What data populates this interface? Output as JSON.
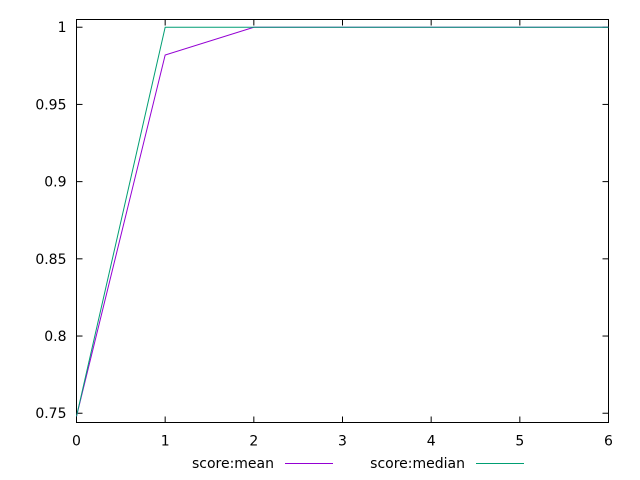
{
  "chart_data": {
    "type": "line",
    "title": "",
    "xlabel": "",
    "ylabel": "",
    "xlim": [
      0,
      6
    ],
    "ylim": [
      0.744,
      1.005
    ],
    "x_ticks": [
      "0",
      "1",
      "2",
      "3",
      "4",
      "5",
      "6"
    ],
    "y_ticks": [
      "0.75",
      "0.8",
      "0.85",
      "0.9",
      "0.95",
      "1"
    ],
    "grid": false,
    "legend_position": "bottom",
    "series": [
      {
        "name": "score:mean",
        "color": "#9400d3",
        "points": [
          {
            "x": 0,
            "y": 0.748
          },
          {
            "x": 1,
            "y": 0.982
          },
          {
            "x": 2,
            "y": 1.0
          },
          {
            "x": 3,
            "y": 1.0
          },
          {
            "x": 4,
            "y": 1.0
          },
          {
            "x": 5,
            "y": 1.0
          },
          {
            "x": 6,
            "y": 1.0
          }
        ]
      },
      {
        "name": "score:median",
        "color": "#009e73",
        "points": [
          {
            "x": 0,
            "y": 0.748
          },
          {
            "x": 1,
            "y": 1.0
          },
          {
            "x": 2,
            "y": 1.0
          },
          {
            "x": 3,
            "y": 1.0
          },
          {
            "x": 4,
            "y": 1.0
          },
          {
            "x": 5,
            "y": 1.0
          },
          {
            "x": 6,
            "y": 1.0
          }
        ]
      }
    ]
  }
}
